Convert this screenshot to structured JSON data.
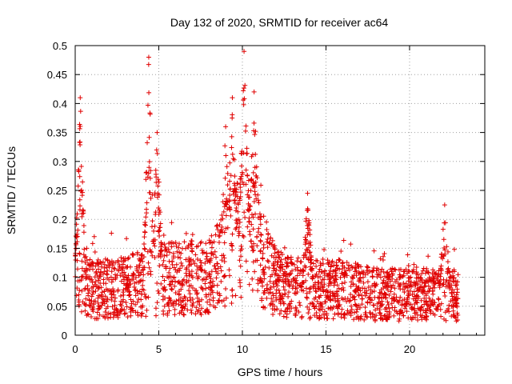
{
  "chart_data": {
    "type": "scatter",
    "title": "Day 132 of 2020, SRMTID for receiver ac64",
    "xlabel": "GPS time / hours",
    "ylabel": "SRMTID / TECUs",
    "xlim": [
      0,
      24.5
    ],
    "ylim": [
      0,
      0.5
    ],
    "xticks": [
      0,
      5,
      10,
      15,
      20
    ],
    "yticks": [
      0,
      0.05,
      0.1,
      0.15,
      0.2,
      0.25,
      0.3,
      0.35,
      0.4,
      0.45,
      0.5
    ],
    "xtick_labels": [
      "0",
      "5",
      "10",
      "15",
      "20"
    ],
    "ytick_labels": [
      "0",
      "0.05",
      "0.1",
      "0.15",
      "0.2",
      "0.25",
      "0.3",
      "0.35",
      "0.4",
      "0.45",
      "0.5"
    ],
    "grid": true,
    "marker": "+",
    "color": "#e00000",
    "series": [
      {
        "name": "SRMTID",
        "x_range": [
          0,
          22.9
        ],
        "n_points": 2300,
        "baseline_envelope": [
          {
            "x": 0.0,
            "y": 0.09
          },
          {
            "x": 1.0,
            "y": 0.08
          },
          {
            "x": 2.5,
            "y": 0.08
          },
          {
            "x": 4.0,
            "y": 0.09
          },
          {
            "x": 6.0,
            "y": 0.1
          },
          {
            "x": 8.0,
            "y": 0.1
          },
          {
            "x": 9.5,
            "y": 0.16
          },
          {
            "x": 10.5,
            "y": 0.17
          },
          {
            "x": 12.0,
            "y": 0.09
          },
          {
            "x": 14.0,
            "y": 0.08
          },
          {
            "x": 16.0,
            "y": 0.08
          },
          {
            "x": 18.0,
            "y": 0.07
          },
          {
            "x": 20.0,
            "y": 0.07
          },
          {
            "x": 22.9,
            "y": 0.07
          }
        ],
        "peaks": [
          {
            "x": 0.3,
            "y": 0.41
          },
          {
            "x": 4.4,
            "y": 0.48
          },
          {
            "x": 4.9,
            "y": 0.35
          },
          {
            "x": 9.0,
            "y": 0.36
          },
          {
            "x": 9.4,
            "y": 0.41
          },
          {
            "x": 10.1,
            "y": 0.49
          },
          {
            "x": 10.7,
            "y": 0.42
          },
          {
            "x": 13.9,
            "y": 0.245
          },
          {
            "x": 22.1,
            "y": 0.225
          }
        ]
      }
    ]
  }
}
